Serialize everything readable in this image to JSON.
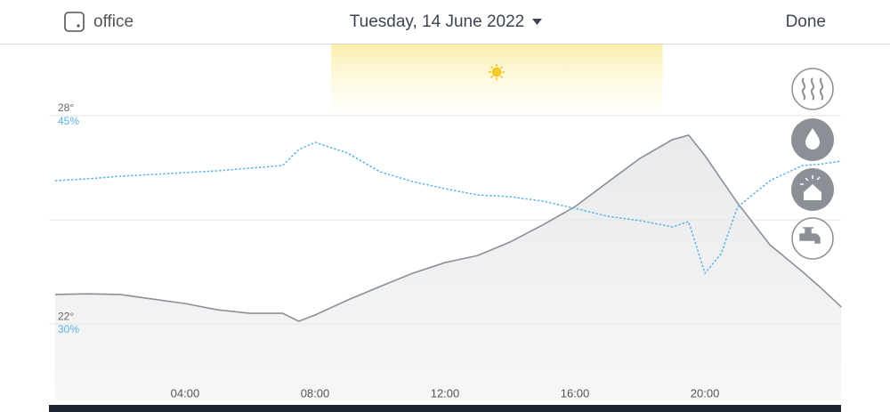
{
  "header": {
    "location": "office",
    "date": "Tuesday, 14 June 2022",
    "done": "Done"
  },
  "chart_data": {
    "type": "line",
    "x": [
      0,
      1,
      2,
      3,
      4,
      5,
      6,
      7,
      7.5,
      8,
      9,
      10,
      11,
      12,
      13,
      14,
      15,
      16,
      17,
      18,
      19,
      19.5,
      20,
      20.5,
      21,
      22,
      23,
      23.5,
      24.2
    ],
    "xlim": [
      -0.19,
      24.19
    ],
    "xticks": [
      {
        "value": 4,
        "label": "04:00"
      },
      {
        "value": 8,
        "label": "08:00"
      },
      {
        "value": 12,
        "label": "12:00"
      },
      {
        "value": 16,
        "label": "16:00"
      },
      {
        "value": 20,
        "label": "20:00"
      }
    ],
    "ylim": [
      19.8,
      30.05
    ],
    "yticks": [
      {
        "value": 22,
        "label": "22°"
      },
      {
        "value": 28,
        "label": "28°"
      }
    ],
    "ygrid": [
      22,
      25,
      28
    ],
    "y2lim": [
      24.49,
      50.13
    ],
    "y2ticks": [
      {
        "value": 30,
        "label": "30%"
      },
      {
        "value": 45,
        "label": "45%"
      }
    ],
    "daylight": [
      8.5,
      18.7
    ],
    "series": [
      {
        "name": "Temperature",
        "color": "#8a9096",
        "fill": true,
        "values": [
          22.85,
          22.87,
          22.85,
          22.72,
          22.59,
          22.41,
          22.31,
          22.31,
          22.08,
          22.26,
          22.69,
          23.08,
          23.46,
          23.77,
          23.97,
          24.36,
          24.85,
          25.38,
          26.08,
          26.77,
          27.31,
          27.44,
          26.85,
          26.17,
          25.49,
          24.28,
          23.51,
          23.1,
          22.49
        ]
      },
      {
        "name": "Humidity",
        "color": "#5ab4e5",
        "dashed": true,
        "axis": "y2",
        "values": [
          40.32,
          40.45,
          40.64,
          40.77,
          40.9,
          41.03,
          41.22,
          41.41,
          42.56,
          43.08,
          42.31,
          40.96,
          40.26,
          39.74,
          39.29,
          39.17,
          38.85,
          38.33,
          37.76,
          37.44,
          36.99,
          37.37,
          33.65,
          35.06,
          38.4,
          40.32,
          41.41,
          41.5,
          41.73
        ]
      }
    ]
  }
}
